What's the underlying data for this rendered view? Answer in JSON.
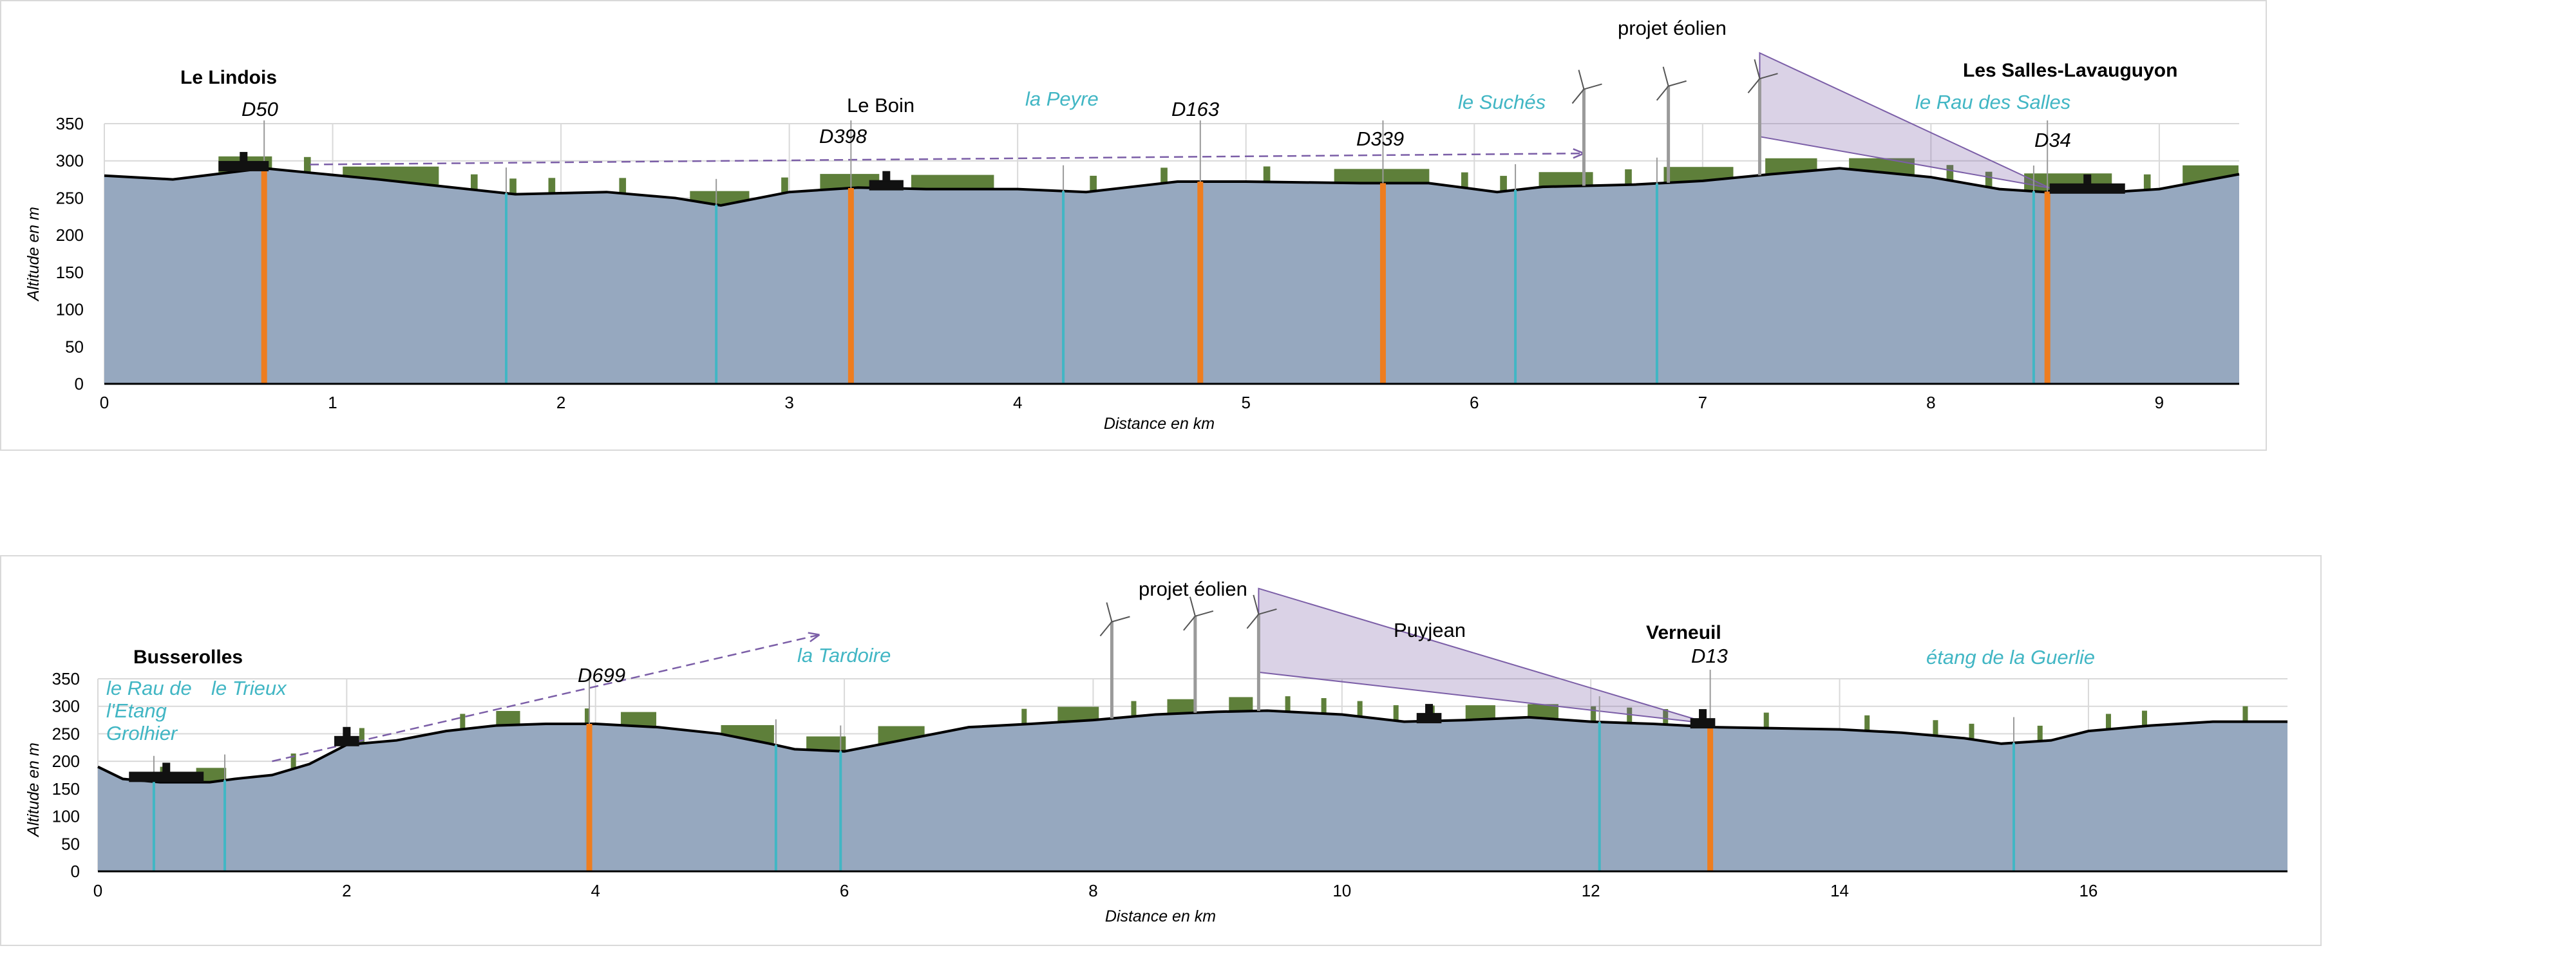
{
  "chart_data": [
    {
      "type": "area",
      "xlabel": "Distance en km",
      "ylabel": "Altitude en m",
      "xlim": [
        0,
        9.35
      ],
      "ylim": [
        0,
        350
      ],
      "xticks": [
        0,
        1,
        2,
        3,
        4,
        5,
        6,
        7,
        8,
        9
      ],
      "yticks": [
        0,
        50,
        100,
        150,
        200,
        250,
        300,
        350
      ],
      "grid": true,
      "profile": {
        "x": [
          0,
          0.3,
          0.7,
          0.9,
          1.2,
          1.5,
          1.8,
          2.2,
          2.5,
          2.7,
          3.0,
          3.3,
          3.6,
          4.0,
          4.3,
          4.7,
          5.0,
          5.5,
          5.8,
          6.1,
          6.3,
          6.7,
          7.0,
          7.3,
          7.6,
          8.0,
          8.3,
          8.5,
          8.6,
          8.8,
          9.0,
          9.35
        ],
        "altitude": [
          280,
          275,
          290,
          284,
          275,
          265,
          255,
          258,
          250,
          240,
          258,
          264,
          262,
          262,
          258,
          272,
          272,
          270,
          270,
          258,
          265,
          268,
          273,
          282,
          290,
          278,
          262,
          258,
          264,
          258,
          262,
          282
        ]
      },
      "roads": [
        {
          "label": "D50",
          "x": 0.7
        },
        {
          "label": "D398",
          "x": 3.27
        },
        {
          "label": "D163",
          "x": 4.8
        },
        {
          "label": "D339",
          "x": 5.6
        },
        {
          "label": "D34",
          "x": 8.51
        }
      ],
      "streams": [
        {
          "label": "la Peyre",
          "x": 4.2
        },
        {
          "label": "le Suchés",
          "x": 6.18
        },
        {
          "label": "le Rau des Salles",
          "x": 8.45
        }
      ],
      "other_stream_x": [
        1.76,
        2.68,
        6.8
      ],
      "places": [
        {
          "label": "Le Lindois",
          "bold": true
        },
        {
          "label": "Les Salles-Lavauguyon",
          "bold": true
        },
        {
          "label": "Le Boin",
          "bold": false
        }
      ],
      "turbines_x": [
        6.48,
        6.85,
        7.25
      ],
      "project_label": "projet éolien"
    },
    {
      "type": "area",
      "xlabel": "Distance en km",
      "ylabel": "Altitude en m",
      "xlim": [
        0,
        17.6
      ],
      "ylim": [
        0,
        350
      ],
      "xticks": [
        0,
        2,
        4,
        6,
        8,
        10,
        12,
        14,
        16
      ],
      "yticks": [
        0,
        50,
        100,
        150,
        200,
        250,
        300,
        350
      ],
      "grid": true,
      "profile": {
        "x": [
          0,
          0.2,
          0.5,
          0.9,
          1.1,
          1.4,
          1.7,
          2.0,
          2.4,
          2.8,
          3.2,
          3.6,
          4.0,
          4.5,
          5.0,
          5.4,
          5.6,
          6.0,
          6.5,
          7.0,
          7.5,
          8.0,
          8.5,
          9.0,
          9.4,
          10.0,
          10.5,
          11.0,
          11.5,
          12.0,
          12.5,
          13.0,
          13.5,
          14.0,
          14.5,
          15.0,
          15.3,
          15.7,
          16.0,
          16.5,
          17.0,
          17.6
        ],
        "altitude": [
          190,
          168,
          162,
          162,
          168,
          175,
          195,
          230,
          238,
          255,
          265,
          268,
          268,
          262,
          250,
          232,
          222,
          218,
          240,
          262,
          268,
          275,
          285,
          290,
          292,
          285,
          272,
          275,
          280,
          272,
          268,
          262,
          260,
          258,
          252,
          242,
          232,
          238,
          255,
          265,
          272,
          272
        ]
      },
      "roads": [
        {
          "label": "D699",
          "x": 3.95
        },
        {
          "label": "D13",
          "x": 12.96
        }
      ],
      "streams": [
        {
          "label": "le Rau de l'Etang Grolhier",
          "x": 0.45
        },
        {
          "label": "le Trieux",
          "x": 1.02
        },
        {
          "label": "la Tardoire",
          "x": 5.97
        },
        {
          "label": "étang de la Guerlie",
          "x": 15.4
        }
      ],
      "other_stream_x": [
        5.45,
        12.07
      ],
      "places": [
        {
          "label": "Busserolles",
          "bold": true
        },
        {
          "label": "Verneuil",
          "bold": true
        },
        {
          "label": "Puyjean",
          "bold": false
        }
      ],
      "turbines_x": [
        8.15,
        8.82,
        9.33
      ],
      "project_label": "projet éolien"
    }
  ],
  "text": {
    "p1": {
      "lindois": "Le Lindois",
      "salles": "Les Salles-Lavauguyon",
      "boin": "Le Boin",
      "d50": "D50",
      "d398": "D398",
      "d163": "D163",
      "d339": "D339",
      "d34": "D34",
      "peyre": "la Peyre",
      "suches": "le Suchés",
      "rau_salles": "le Rau des Salles",
      "projet": "projet éolien"
    },
    "p2": {
      "busserolles": "Busserolles",
      "verneuil": "Verneuil",
      "puyjean": "Puyjean",
      "d699": "D699",
      "d13": "D13",
      "rau1": "le Rau de",
      "rau2": "l'Etang",
      "rau3": "Grolhier",
      "trieux": "le Trieux",
      "tardoire": "la Tardoire",
      "guerlie": "étang de la Guerlie",
      "projet": "projet éolien"
    }
  },
  "colors": {
    "terrain": "#96a8bf",
    "vegetation": "#5e7f3a",
    "road": "#ee7d1f",
    "stream": "#41b6c4",
    "sightline": "#7b5ea7",
    "grid": "#d9d9d9",
    "buildings": "#111111"
  }
}
